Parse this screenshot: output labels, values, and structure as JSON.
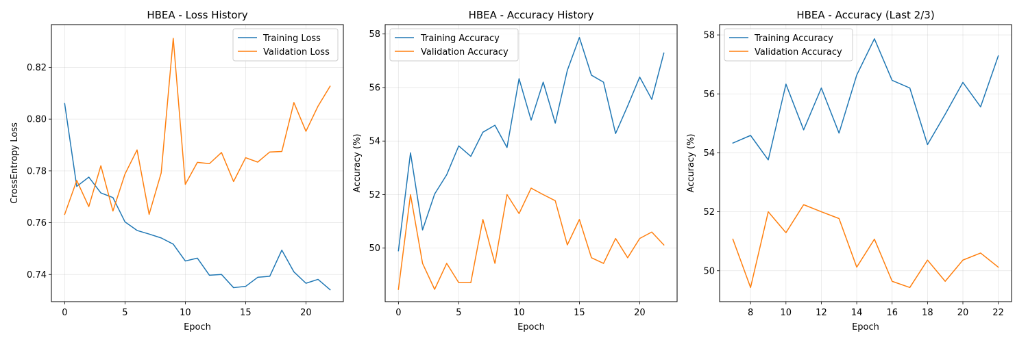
{
  "chart_data": [
    {
      "type": "line",
      "title": "HBEA - Loss History",
      "xlabel": "Epoch",
      "ylabel": "CrossEntropy Loss",
      "xlim": [
        -1.1,
        23.1
      ],
      "ylim": [
        0.7295,
        0.8365
      ],
      "xticks": [
        0,
        5,
        10,
        15,
        20
      ],
      "xtick_labels": [
        "0",
        "5",
        "10",
        "15",
        "20"
      ],
      "yticks": [
        0.74,
        0.76,
        0.78,
        0.8,
        0.82
      ],
      "ytick_labels": [
        "0.74",
        "0.76",
        "0.78",
        "0.80",
        "0.82"
      ],
      "grid": true,
      "legend_position": "top-right",
      "series": [
        {
          "name": "Training Loss",
          "color": "#1f77b4",
          "x": [
            0,
            1,
            2,
            3,
            4,
            5,
            6,
            7,
            8,
            9,
            10,
            11,
            12,
            13,
            14,
            15,
            16,
            17,
            18,
            19,
            20,
            21,
            22
          ],
          "y": [
            0.806,
            0.774,
            0.7776,
            0.7715,
            0.7697,
            0.7603,
            0.757,
            0.7556,
            0.7541,
            0.7517,
            0.7452,
            0.7463,
            0.7397,
            0.74,
            0.7349,
            0.7354,
            0.7389,
            0.7393,
            0.7494,
            0.741,
            0.7366,
            0.7381,
            0.7341
          ]
        },
        {
          "name": "Validation Loss",
          "color": "#ff7f0e",
          "x": [
            0,
            1,
            2,
            3,
            4,
            5,
            6,
            7,
            8,
            9,
            10,
            11,
            12,
            13,
            14,
            15,
            16,
            17,
            18,
            19,
            20,
            21,
            22
          ],
          "y": [
            0.7632,
            0.7763,
            0.7662,
            0.782,
            0.7645,
            0.7788,
            0.7881,
            0.7632,
            0.7792,
            0.8312,
            0.7748,
            0.7833,
            0.7828,
            0.7871,
            0.7759,
            0.7851,
            0.7834,
            0.7873,
            0.7875,
            0.8064,
            0.7953,
            0.805,
            0.8127
          ]
        }
      ]
    },
    {
      "type": "line",
      "title": "HBEA - Accuracy History",
      "xlabel": "Epoch",
      "ylabel": "Accuracy (%)",
      "xlim": [
        -1.1,
        23.1
      ],
      "ylim": [
        48.0,
        58.35
      ],
      "xticks": [
        0,
        5,
        10,
        15,
        20
      ],
      "xtick_labels": [
        "0",
        "5",
        "10",
        "15",
        "20"
      ],
      "yticks": [
        50,
        52,
        54,
        56,
        58
      ],
      "ytick_labels": [
        "50",
        "52",
        "54",
        "56",
        "58"
      ],
      "grid": true,
      "legend_position": "top-left",
      "series": [
        {
          "name": "Training Accuracy",
          "color": "#1f77b4",
          "x": [
            0,
            1,
            2,
            3,
            4,
            5,
            6,
            7,
            8,
            9,
            10,
            11,
            12,
            13,
            14,
            15,
            16,
            17,
            18,
            19,
            20,
            21,
            22
          ],
          "y": [
            49.9,
            53.56,
            50.68,
            52.02,
            52.74,
            53.82,
            53.43,
            54.33,
            54.59,
            53.76,
            56.33,
            54.78,
            56.2,
            54.67,
            56.64,
            57.87,
            56.46,
            56.2,
            54.28,
            55.31,
            56.39,
            55.56,
            57.29
          ]
        },
        {
          "name": "Validation Accuracy",
          "color": "#ff7f0e",
          "x": [
            0,
            1,
            2,
            3,
            4,
            5,
            6,
            7,
            8,
            9,
            10,
            11,
            12,
            13,
            14,
            15,
            16,
            17,
            18,
            19,
            20,
            21,
            22
          ],
          "y": [
            48.46,
            52.0,
            49.43,
            48.46,
            49.43,
            48.71,
            48.71,
            51.07,
            49.43,
            52.0,
            51.29,
            52.24,
            52.0,
            51.77,
            50.12,
            51.07,
            49.64,
            49.43,
            50.36,
            49.64,
            50.36,
            50.6,
            50.12
          ]
        }
      ]
    },
    {
      "type": "line",
      "title": "HBEA - Accuracy (Last 2/3)",
      "xlabel": "Epoch",
      "ylabel": "Accuracy (%)",
      "xlim": [
        6.25,
        22.75
      ],
      "ylim": [
        48.95,
        58.35
      ],
      "xticks": [
        8,
        10,
        12,
        14,
        16,
        18,
        20,
        22
      ],
      "xtick_labels": [
        "8",
        "10",
        "12",
        "14",
        "16",
        "18",
        "20",
        "22"
      ],
      "yticks": [
        50,
        52,
        54,
        56,
        58
      ],
      "ytick_labels": [
        "50",
        "52",
        "54",
        "56",
        "58"
      ],
      "grid": true,
      "legend_position": "top-left",
      "series": [
        {
          "name": "Training Accuracy",
          "color": "#1f77b4",
          "x": [
            7,
            8,
            9,
            10,
            11,
            12,
            13,
            14,
            15,
            16,
            17,
            18,
            19,
            20,
            21,
            22
          ],
          "y": [
            54.33,
            54.59,
            53.76,
            56.33,
            54.78,
            56.2,
            54.67,
            56.64,
            57.87,
            56.46,
            56.2,
            54.28,
            55.31,
            56.39,
            55.56,
            57.29
          ]
        },
        {
          "name": "Validation Accuracy",
          "color": "#ff7f0e",
          "x": [
            7,
            8,
            9,
            10,
            11,
            12,
            13,
            14,
            15,
            16,
            17,
            18,
            19,
            20,
            21,
            22
          ],
          "y": [
            51.07,
            49.43,
            52.0,
            51.29,
            52.24,
            52.0,
            51.77,
            50.12,
            51.07,
            49.64,
            49.43,
            50.36,
            49.64,
            50.36,
            50.6,
            50.12
          ]
        }
      ]
    }
  ]
}
